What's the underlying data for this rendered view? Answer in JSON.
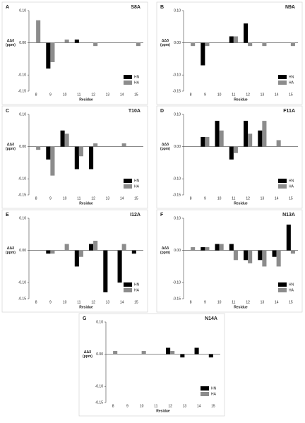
{
  "chart_data": [
    {
      "type": "bar",
      "label": "A",
      "title": "S8A",
      "y_label": [
        "ΔΔδ",
        "(ppm)"
      ],
      "x_label": "Residue",
      "categories": [
        8,
        9,
        10,
        11,
        12,
        13,
        14,
        15
      ],
      "series": [
        {
          "name": "HN",
          "color": "#000000",
          "values": [
            0,
            -0.08,
            0,
            0.01,
            0,
            0,
            0,
            0
          ]
        },
        {
          "name": "HA",
          "color": "#8c8c8c",
          "values": [
            0.07,
            -0.06,
            0.01,
            0,
            -0.01,
            0,
            0,
            -0.01
          ]
        }
      ],
      "ylim": [
        -0.15,
        0.1
      ],
      "yticks": [
        {
          "value": 0.1,
          "label": "0.10"
        },
        {
          "value": 0,
          "label": "0.00"
        },
        {
          "value": -0.1,
          "label": "-0.10"
        },
        {
          "value": -0.15,
          "label": "-0.15"
        }
      ],
      "legend": "lower right"
    },
    {
      "type": "bar",
      "label": "B",
      "title": "N9A",
      "y_label": [
        "ΔΔδ",
        "(ppm)"
      ],
      "x_label": "Residue",
      "categories": [
        8,
        9,
        10,
        11,
        12,
        13,
        14,
        15
      ],
      "series": [
        {
          "name": "HN",
          "color": "#000000",
          "values": [
            0,
            -0.07,
            0,
            0.02,
            0.06,
            0,
            0,
            0
          ]
        },
        {
          "name": "HA",
          "color": "#8c8c8c",
          "values": [
            -0.01,
            -0.01,
            0,
            0.02,
            -0.01,
            -0.01,
            0,
            -0.01
          ]
        }
      ],
      "ylim": [
        -0.15,
        0.1
      ],
      "yticks": [
        {
          "value": 0.1,
          "label": "0.10"
        },
        {
          "value": 0,
          "label": "0.00"
        },
        {
          "value": -0.1,
          "label": "-0.10"
        },
        {
          "value": -0.15,
          "label": "-0.15"
        }
      ],
      "legend": "lower right"
    },
    {
      "type": "bar",
      "label": "C",
      "title": "T10A",
      "y_label": [
        "ΔΔδ",
        "(ppm)"
      ],
      "x_label": "Residue",
      "categories": [
        8,
        9,
        10,
        11,
        12,
        13,
        14,
        15
      ],
      "series": [
        {
          "name": "HN",
          "color": "#000000",
          "values": [
            0,
            -0.04,
            0.05,
            -0.07,
            -0.07,
            0,
            0,
            0
          ]
        },
        {
          "name": "HA",
          "color": "#8c8c8c",
          "values": [
            -0.01,
            -0.09,
            0.04,
            -0.03,
            0.01,
            0,
            0.01,
            0
          ]
        }
      ],
      "ylim": [
        -0.15,
        0.1
      ],
      "yticks": [
        {
          "value": 0.1,
          "label": "0.10"
        },
        {
          "value": 0,
          "label": "0.00"
        },
        {
          "value": -0.1,
          "label": "-0.10"
        },
        {
          "value": -0.15,
          "label": "-0.15"
        }
      ],
      "legend": "lower right"
    },
    {
      "type": "bar",
      "label": "D",
      "title": "F11A",
      "y_label": [
        "ΔΔδ",
        "(ppm)"
      ],
      "x_label": "Residue",
      "categories": [
        8,
        9,
        10,
        11,
        12,
        13,
        14,
        15
      ],
      "series": [
        {
          "name": "HN",
          "color": "#000000",
          "values": [
            0,
            0.03,
            0.08,
            -0.04,
            0.08,
            0.05,
            0,
            0
          ]
        },
        {
          "name": "HA",
          "color": "#8c8c8c",
          "values": [
            0,
            0.03,
            0.05,
            -0.02,
            0.04,
            0.08,
            0.02,
            0
          ]
        }
      ],
      "ylim": [
        -0.15,
        0.1
      ],
      "yticks": [
        {
          "value": 0.1,
          "label": "0.10"
        },
        {
          "value": 0,
          "label": "0.00"
        },
        {
          "value": -0.1,
          "label": "-0.10"
        },
        {
          "value": -0.15,
          "label": "-0.15"
        }
      ],
      "legend": "lower right"
    },
    {
      "type": "bar",
      "label": "E",
      "title": "I12A",
      "y_label": [
        "ΔΔδ",
        "(ppm)"
      ],
      "x_label": "Residue",
      "categories": [
        8,
        9,
        10,
        11,
        12,
        13,
        14,
        15
      ],
      "series": [
        {
          "name": "HN",
          "color": "#000000",
          "values": [
            0,
            -0.01,
            0,
            -0.05,
            0.02,
            -0.13,
            -0.1,
            -0.01
          ]
        },
        {
          "name": "HA",
          "color": "#8c8c8c",
          "values": [
            0,
            -0.01,
            0.02,
            -0.02,
            0.03,
            0,
            0.02,
            0
          ]
        }
      ],
      "ylim": [
        -0.15,
        0.1
      ],
      "yticks": [
        {
          "value": 0.1,
          "label": "0.10"
        },
        {
          "value": 0,
          "label": "0.00"
        },
        {
          "value": -0.1,
          "label": "-0.10"
        },
        {
          "value": -0.15,
          "label": "-0.15"
        }
      ],
      "legend": "lower right"
    },
    {
      "type": "bar",
      "label": "F",
      "title": "N13A",
      "y_label": [
        "ΔΔδ",
        "(ppm)"
      ],
      "x_label": "Residue",
      "categories": [
        8,
        9,
        10,
        11,
        12,
        13,
        14,
        15
      ],
      "series": [
        {
          "name": "HN",
          "color": "#000000",
          "values": [
            0,
            0.01,
            0.02,
            0.02,
            -0.03,
            -0.03,
            -0.02,
            0.08
          ]
        },
        {
          "name": "HA",
          "color": "#8c8c8c",
          "values": [
            0.01,
            0.01,
            0.02,
            -0.03,
            -0.04,
            -0.05,
            -0.05,
            -0.01
          ]
        }
      ],
      "ylim": [
        -0.15,
        0.1
      ],
      "yticks": [
        {
          "value": 0.1,
          "label": "0.10"
        },
        {
          "value": 0,
          "label": "0.00"
        },
        {
          "value": -0.1,
          "label": "-0.10"
        },
        {
          "value": -0.15,
          "label": "-0.15"
        }
      ],
      "legend": "lower right"
    },
    {
      "type": "bar",
      "label": "G",
      "title": "N14A",
      "y_label": [
        "ΔΔδ",
        "(ppm)"
      ],
      "x_label": "Residue",
      "categories": [
        8,
        9,
        10,
        11,
        12,
        13,
        14,
        15
      ],
      "series": [
        {
          "name": "HN",
          "color": "#000000",
          "values": [
            0,
            0,
            0,
            0,
            0.02,
            -0.01,
            0.02,
            -0.01
          ]
        },
        {
          "name": "HA",
          "color": "#8c8c8c",
          "values": [
            0.01,
            0,
            0.01,
            0,
            0.01,
            0,
            0,
            0
          ]
        }
      ],
      "ylim": [
        -0.15,
        0.1
      ],
      "yticks": [
        {
          "value": 0.1,
          "label": "0.10"
        },
        {
          "value": 0,
          "label": "0.00"
        },
        {
          "value": -0.1,
          "label": "-0.10"
        },
        {
          "value": -0.15,
          "label": "-0.15"
        }
      ],
      "legend": "lower right"
    }
  ]
}
